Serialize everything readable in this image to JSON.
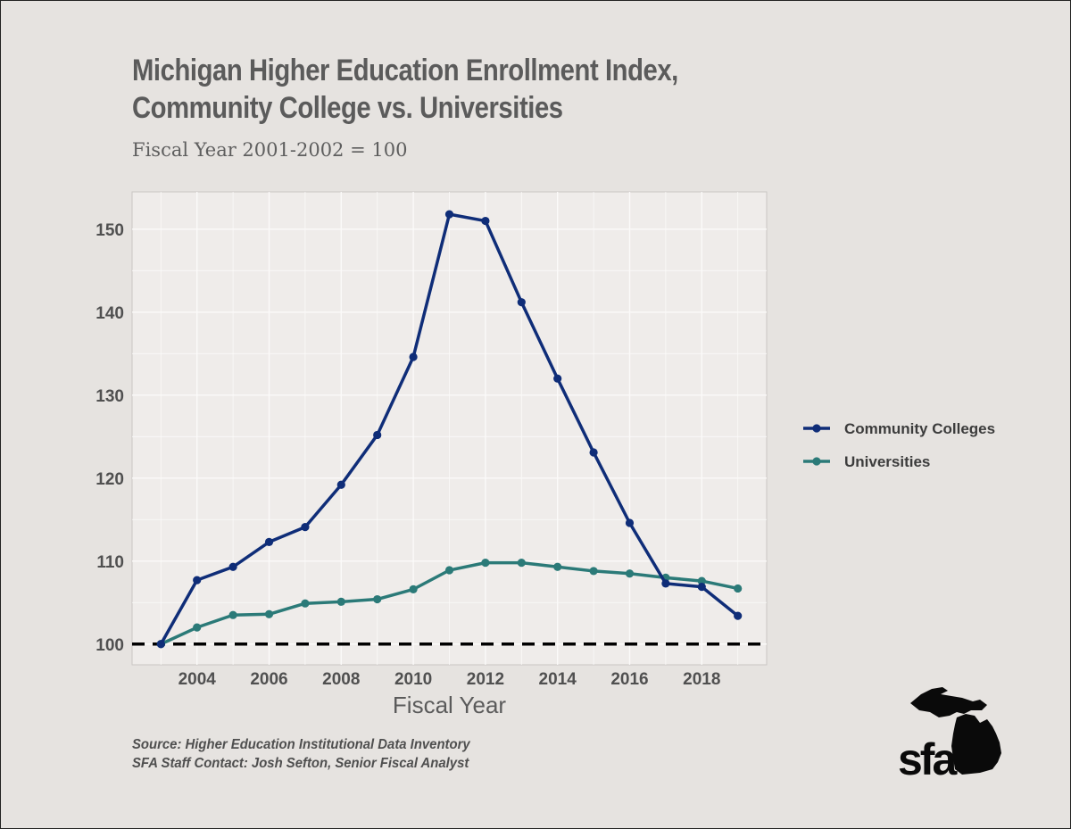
{
  "header": {
    "title_line1": "Michigan Higher Education Enrollment Index,",
    "title_line2": "Community College vs. Universities",
    "subtitle": "Fiscal Year 2001-2002 = 100"
  },
  "footer": {
    "source": "Source: Higher Education Institutional Data Inventory",
    "contact": "SFA Staff Contact: Josh Sefton, Senior Fiscal Analyst"
  },
  "logo": {
    "text": "sfa"
  },
  "colors": {
    "community": "#0f2d78",
    "universities": "#2b7a78",
    "baseline": "#000000",
    "panel": "#efecea",
    "grid": "#fbfaf9"
  },
  "chart_data": {
    "type": "line",
    "title": "Michigan Higher Education Enrollment Index, Community College vs. Universities",
    "subtitle": "Fiscal Year 2001-2002 = 100",
    "xlabel": "Fiscal Year",
    "ylabel": "",
    "x": [
      2003,
      2004,
      2005,
      2006,
      2007,
      2008,
      2009,
      2010,
      2011,
      2012,
      2013,
      2014,
      2015,
      2016,
      2017,
      2018,
      2019
    ],
    "xlim": [
      2002.2,
      2019.8
    ],
    "ylim": [
      97.5,
      154.5
    ],
    "x_ticks": [
      2004,
      2006,
      2008,
      2010,
      2012,
      2014,
      2016,
      2018
    ],
    "x_tick_labels": [
      "2004",
      "2006",
      "2008",
      "2010",
      "2012",
      "2014",
      "2016",
      "2018"
    ],
    "y_ticks": [
      100,
      110,
      120,
      130,
      140,
      150
    ],
    "y_tick_labels": [
      "100",
      "110",
      "120",
      "130",
      "140",
      "150"
    ],
    "baseline": 100,
    "legend_position": "right",
    "series": [
      {
        "name": "Community Colleges",
        "values": [
          100.0,
          107.7,
          109.3,
          112.3,
          114.1,
          119.2,
          125.2,
          134.6,
          151.8,
          151.0,
          141.2,
          132.0,
          123.1,
          114.6,
          107.3,
          106.9,
          103.4
        ]
      },
      {
        "name": "Universities",
        "values": [
          100.0,
          102.0,
          103.5,
          103.6,
          104.9,
          105.1,
          105.4,
          106.6,
          108.9,
          109.8,
          109.8,
          109.3,
          108.8,
          108.5,
          108.0,
          107.6,
          106.7
        ]
      }
    ]
  }
}
